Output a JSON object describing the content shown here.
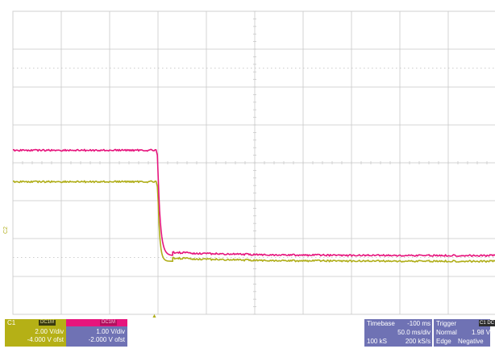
{
  "screen": {
    "ground_marker_label": "C2",
    "trigger_marker": "▲"
  },
  "colors": {
    "grid_line": "#c9c9c9",
    "grid_dot": "#bdbdbd",
    "frame": "#d0d0d0",
    "channel1_trace": "#b0ae1a",
    "channel2_trace": "#e6157d",
    "channel1_box": "#b5b016",
    "channel2_box": "#6f72b4",
    "info_box": "#6f72b4"
  },
  "traces": {
    "channel1_high_level_div": -0.5,
    "channel1_low_level_div": -2.6,
    "channel2_high_level_div": 0.33,
    "channel2_low_level_div": -2.45,
    "fall_time_div": 0.0
  },
  "channel1": {
    "name": "C1",
    "tag_dc": "DC1M",
    "scale": "2.00 V/div",
    "offset": "-4.000 V ofst"
  },
  "channel2": {
    "name": "C2",
    "tag_dc": "DC1M",
    "scale": "1.00 V/div",
    "offset": "-2.000 V ofst"
  },
  "timebase": {
    "label": "Timebase",
    "delay": "-100 ms",
    "per_div": "50.0 ms/div",
    "samples": "100 kS",
    "rate": "200 kS/s"
  },
  "trigger": {
    "label": "Trigger",
    "tag": "C1 DC",
    "mode": "Normal",
    "level": "1.98 V",
    "type": "Edge",
    "slope": "Negative"
  }
}
